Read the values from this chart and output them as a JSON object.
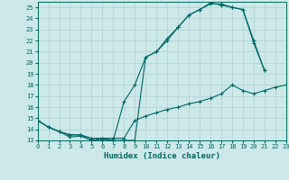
{
  "xlabel": "Humidex (Indice chaleur)",
  "bg_color": "#cce8e8",
  "grid_color": "#b0d0d0",
  "line_color": "#006666",
  "xlim": [
    0,
    23
  ],
  "ylim": [
    13,
    25.5
  ],
  "yticks": [
    13,
    14,
    15,
    16,
    17,
    18,
    19,
    20,
    21,
    22,
    23,
    24,
    25
  ],
  "xticks": [
    0,
    1,
    2,
    3,
    4,
    5,
    6,
    7,
    8,
    9,
    10,
    11,
    12,
    13,
    14,
    15,
    16,
    17,
    18,
    19,
    20,
    21,
    22,
    23
  ],
  "line1_x": [
    0,
    1,
    2,
    3,
    4,
    5,
    6,
    7,
    8,
    9,
    10,
    11,
    12,
    13,
    14,
    15,
    16,
    17,
    18,
    19,
    20,
    21
  ],
  "line1_y": [
    14.8,
    14.2,
    13.8,
    13.3,
    13.4,
    13.0,
    13.1,
    13.0,
    13.0,
    13.0,
    20.5,
    21.0,
    22.0,
    23.2,
    24.3,
    24.8,
    25.3,
    25.3,
    25.0,
    24.8,
    21.8,
    19.3
  ],
  "line2_x": [
    0,
    1,
    2,
    3,
    4,
    5,
    6,
    7,
    8,
    9,
    10,
    11,
    12,
    13,
    14,
    15,
    16,
    17,
    18,
    19,
    20,
    21
  ],
  "line2_y": [
    14.8,
    14.2,
    13.8,
    13.5,
    13.5,
    13.0,
    13.2,
    13.0,
    16.5,
    18.0,
    20.5,
    21.0,
    22.2,
    23.2,
    24.3,
    24.8,
    25.4,
    25.2,
    25.0,
    24.8,
    22.0,
    19.3
  ],
  "line3_x": [
    0,
    1,
    2,
    3,
    4,
    5,
    6,
    7,
    8,
    9,
    10,
    11,
    12,
    13,
    14,
    15,
    16,
    17,
    18,
    19,
    20,
    21,
    22,
    23
  ],
  "line3_y": [
    14.8,
    14.2,
    13.8,
    13.5,
    13.5,
    13.2,
    13.2,
    13.2,
    13.2,
    14.8,
    15.2,
    15.5,
    15.8,
    16.0,
    16.3,
    16.5,
    16.8,
    17.2,
    18.0,
    17.5,
    17.2,
    17.5,
    17.8,
    18.0
  ]
}
